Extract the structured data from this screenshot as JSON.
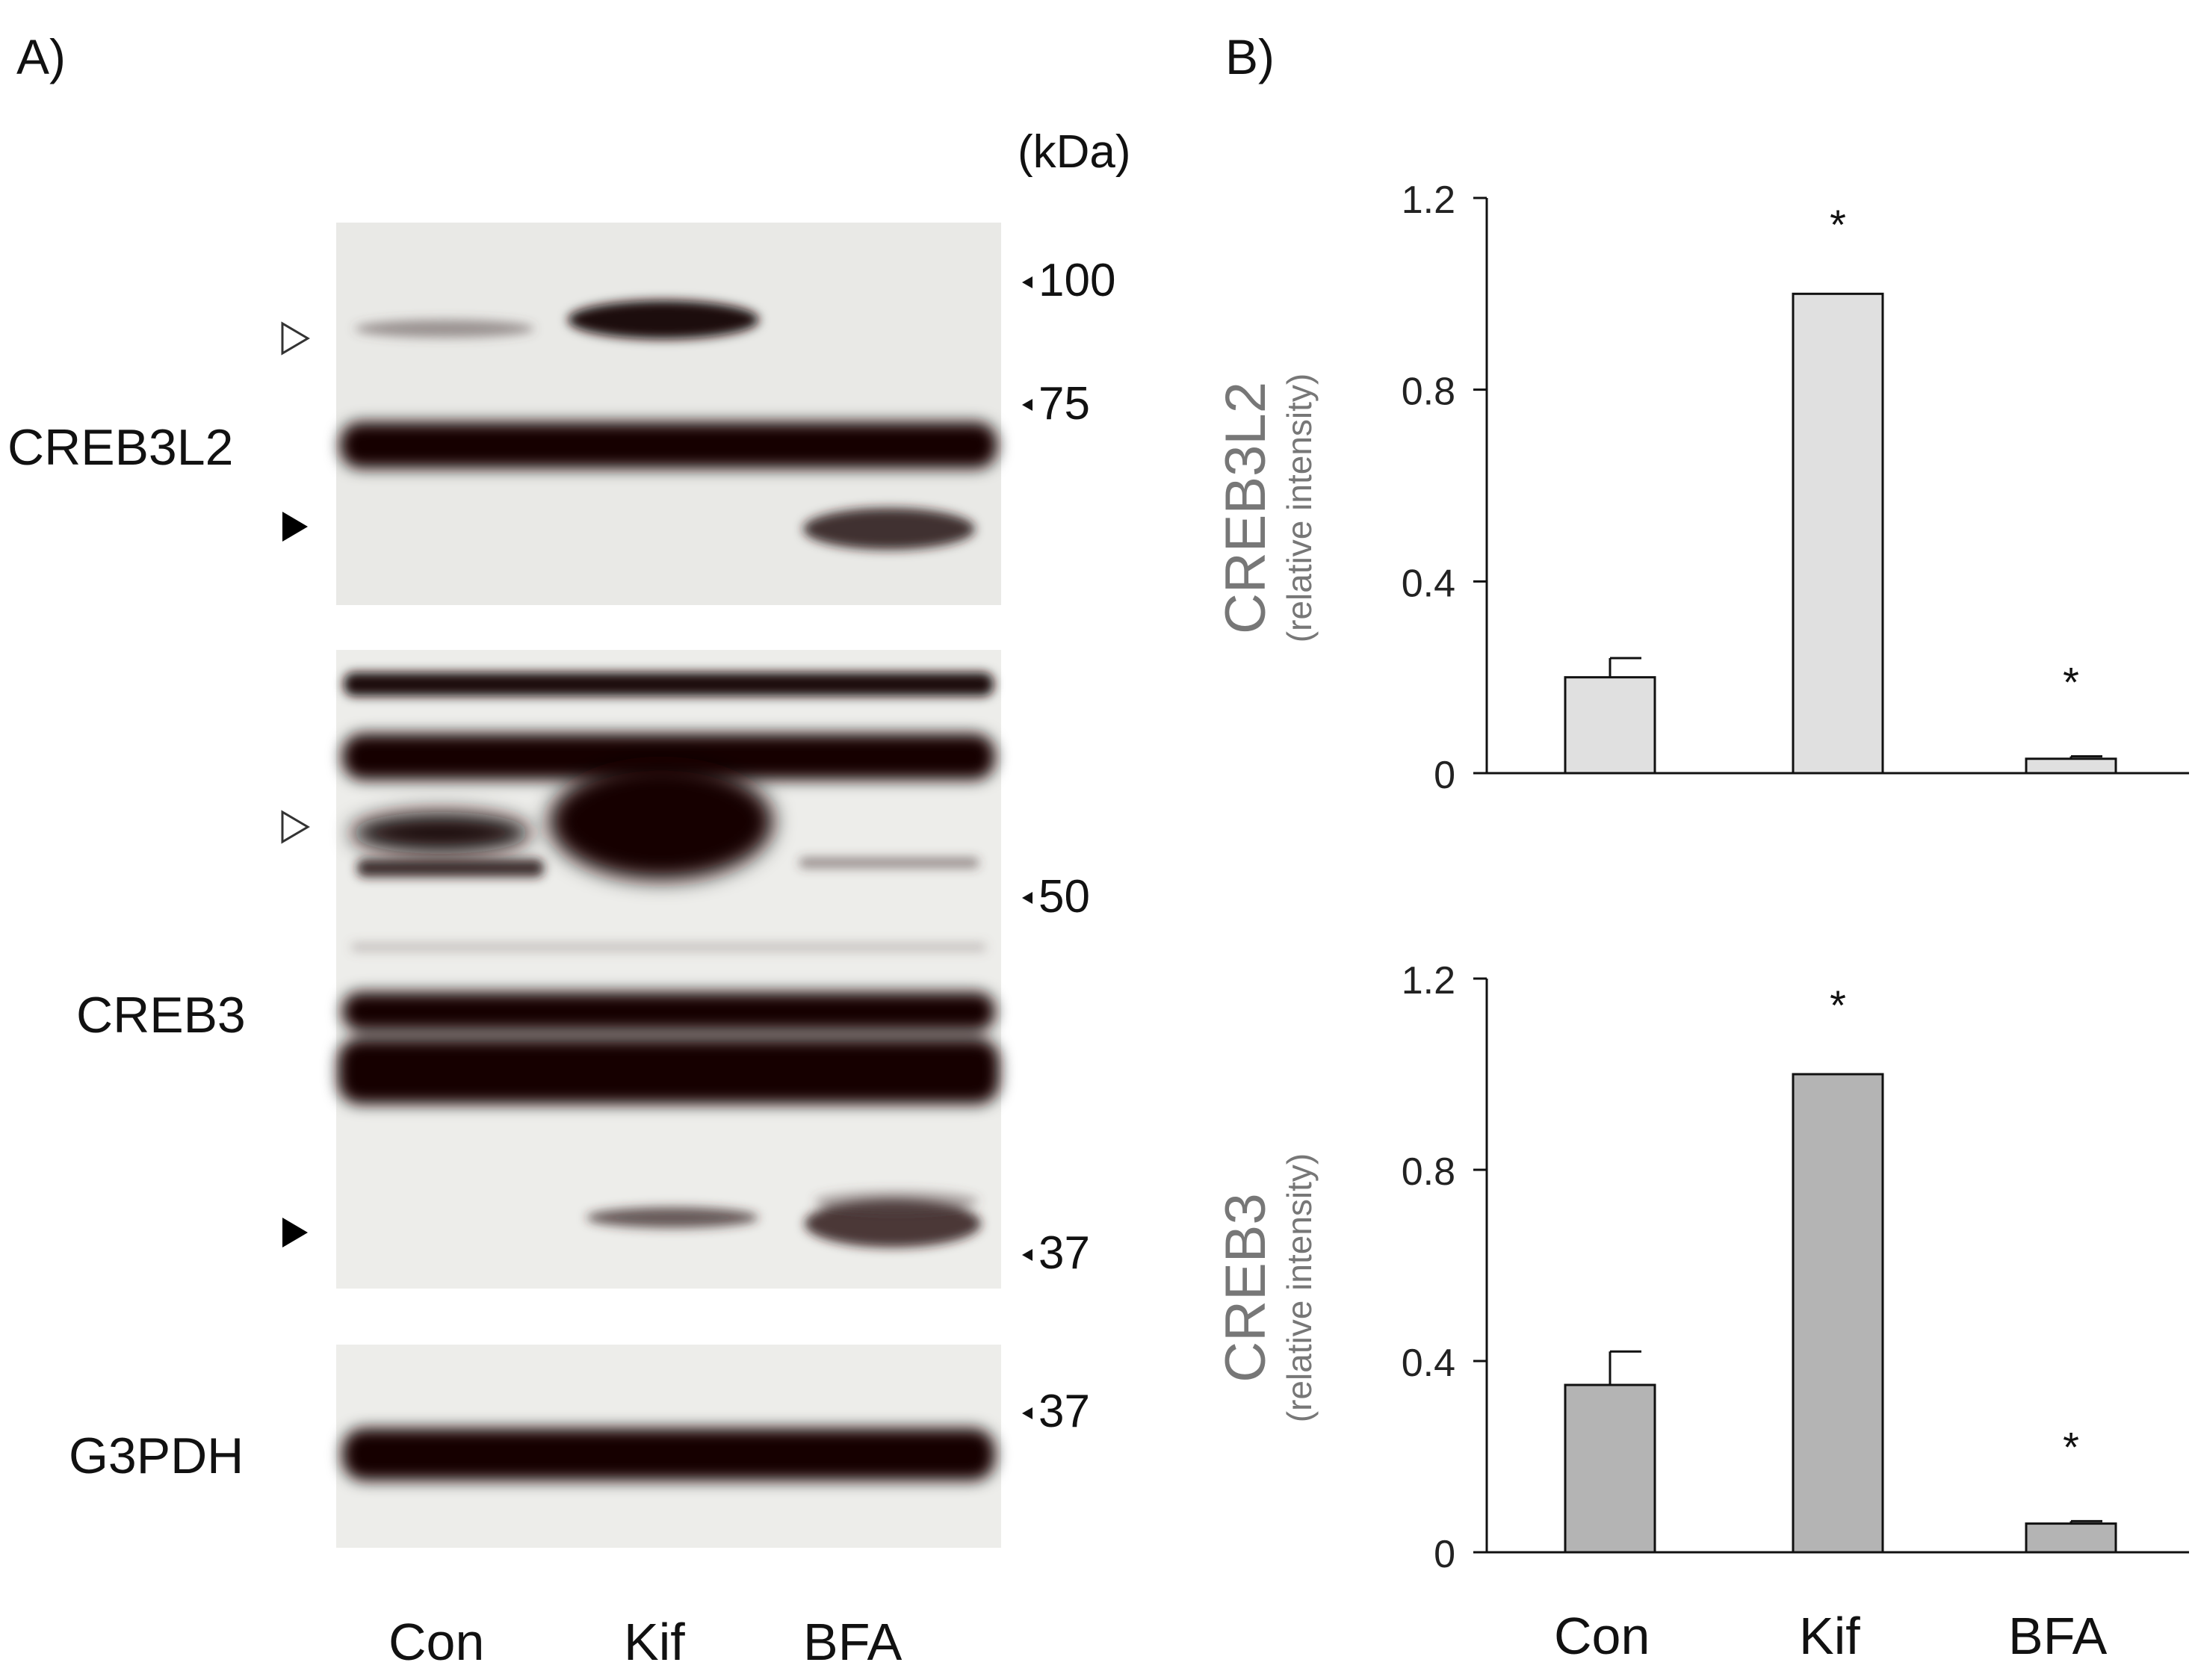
{
  "panelA": {
    "label": "A)",
    "kda_label": "(kDa)",
    "blots": [
      {
        "name": "CREB3L2",
        "label": "CREB3L2"
      },
      {
        "name": "CREB3",
        "label": "CREB3"
      },
      {
        "name": "G3PDH",
        "label": "G3PDH"
      }
    ],
    "markers": [
      "100",
      "75",
      "50",
      "37",
      "37"
    ],
    "lanes": [
      "Con",
      "Kif",
      "BFA"
    ]
  },
  "panelB": {
    "label": "B)",
    "categories": [
      "Con",
      "Kif",
      "BFA"
    ]
  },
  "chart_data": [
    {
      "type": "bar",
      "ylabel": "CREB3L2",
      "ylabel_sub": "(relative intensity)",
      "categories": [
        "Con",
        "Kif",
        "BFA"
      ],
      "values": [
        0.2,
        1.0,
        0.03
      ],
      "errors": [
        0.04,
        0,
        0.005
      ],
      "significance": [
        "",
        "*",
        "*"
      ],
      "ylim": [
        0,
        1.2
      ],
      "yticks": [
        "0",
        "0.4",
        "0.8",
        "1.2"
      ],
      "bar_color": "#e0e0e0"
    },
    {
      "type": "bar",
      "ylabel": "CREB3",
      "ylabel_sub": "(relative intensity)",
      "categories": [
        "Con",
        "Kif",
        "BFA"
      ],
      "values": [
        0.35,
        1.0,
        0.06
      ],
      "errors": [
        0.07,
        0,
        0.005
      ],
      "significance": [
        "",
        "*",
        "*"
      ],
      "ylim": [
        0,
        1.2
      ],
      "yticks": [
        "0",
        "0.4",
        "0.8",
        "1.2"
      ],
      "bar_color": "#b4b4b4"
    }
  ]
}
